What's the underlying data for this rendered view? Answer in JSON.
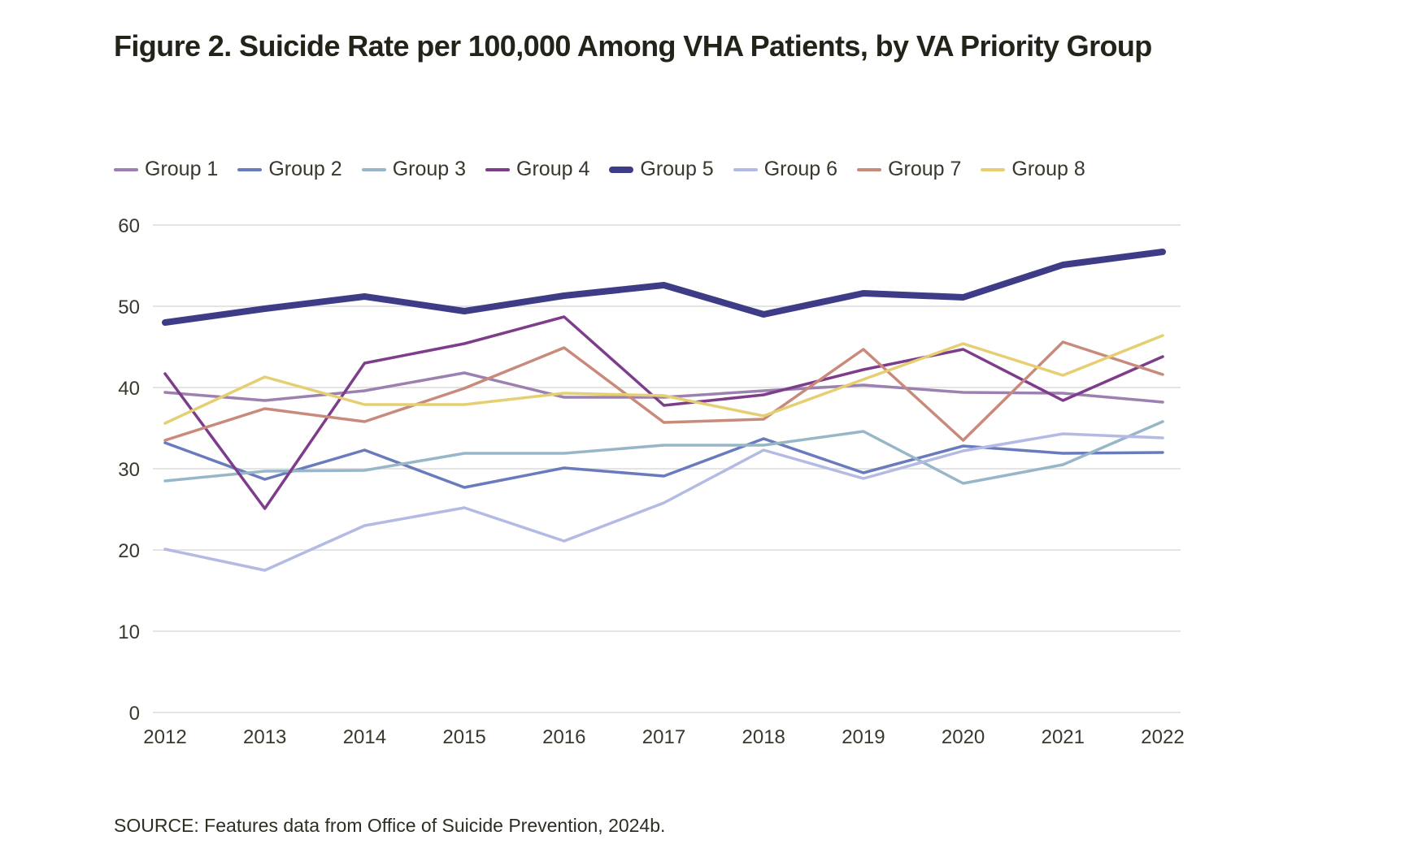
{
  "title": "Figure 2. Suicide Rate per 100,000 Among VHA Patients, by VA Priority Group",
  "source": "SOURCE: Features data from Office of Suicide Prevention, 2024b.",
  "chart_data": {
    "type": "line",
    "title": "Figure 2. Suicide Rate per 100,000 Among VHA Patients, by VA Priority Group",
    "xlabel": "",
    "ylabel": "",
    "x": [
      "2012",
      "2013",
      "2014",
      "2015",
      "2016",
      "2017",
      "2018",
      "2019",
      "2020",
      "2021",
      "2022"
    ],
    "ylim": [
      0,
      60
    ],
    "yticks": [
      0,
      10,
      20,
      30,
      40,
      50,
      60
    ],
    "grid": true,
    "legend_position": "top-left",
    "series": [
      {
        "name": "Group 1",
        "color": "#9b80b0",
        "emphasis": false,
        "values": [
          39.4,
          38.4,
          39.6,
          41.8,
          38.8,
          38.8,
          39.6,
          40.3,
          39.4,
          39.3,
          38.2
        ]
      },
      {
        "name": "Group 2",
        "color": "#6a7bbd",
        "emphasis": false,
        "values": [
          33.2,
          28.7,
          32.3,
          27.7,
          30.1,
          29.1,
          33.7,
          29.5,
          32.8,
          31.9,
          32.0
        ]
      },
      {
        "name": "Group 3",
        "color": "#97b6c8",
        "emphasis": false,
        "values": [
          28.5,
          29.7,
          29.8,
          31.9,
          31.9,
          32.9,
          32.9,
          34.6,
          28.2,
          30.5,
          35.8
        ]
      },
      {
        "name": "Group 4",
        "color": "#7e3d8a",
        "emphasis": false,
        "values": [
          41.7,
          25.1,
          43.0,
          45.4,
          48.7,
          37.8,
          39.1,
          42.2,
          44.7,
          38.4,
          43.8
        ]
      },
      {
        "name": "Group 5",
        "color": "#3e3c86",
        "emphasis": true,
        "values": [
          48.0,
          49.7,
          51.2,
          49.4,
          51.3,
          52.6,
          49.0,
          51.6,
          51.1,
          55.1,
          56.7
        ]
      },
      {
        "name": "Group 6",
        "color": "#b3bae3",
        "emphasis": false,
        "values": [
          20.1,
          17.5,
          23.0,
          25.2,
          21.1,
          25.8,
          32.3,
          28.8,
          32.2,
          34.3,
          33.8
        ]
      },
      {
        "name": "Group 7",
        "color": "#c88a7a",
        "emphasis": false,
        "values": [
          33.5,
          37.4,
          35.8,
          39.9,
          44.9,
          35.7,
          36.1,
          44.7,
          33.5,
          45.6,
          41.6
        ]
      },
      {
        "name": "Group 8",
        "color": "#e6cf72",
        "emphasis": false,
        "values": [
          35.6,
          41.3,
          37.9,
          37.9,
          39.3,
          39.0,
          36.5,
          41.0,
          45.4,
          41.5,
          46.4
        ]
      }
    ]
  }
}
